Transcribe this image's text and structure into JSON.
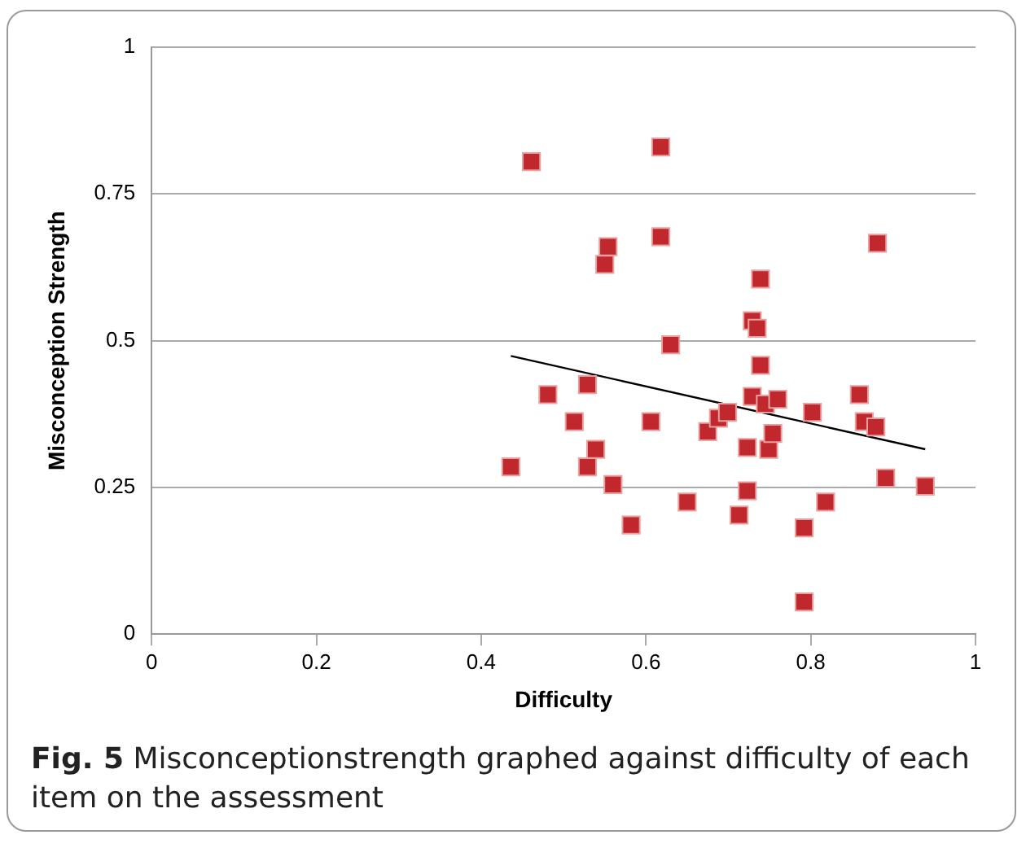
{
  "chart_data": {
    "type": "scatter",
    "xlabel": "Difficulty",
    "ylabel": "Misconception Strength",
    "xlim": [
      0,
      1
    ],
    "xticks": [
      0,
      0.2,
      0.4,
      0.6,
      0.8,
      1
    ],
    "ylim": [
      0,
      1
    ],
    "yticks": [
      0,
      0.25,
      0.5,
      0.75,
      1
    ],
    "grid": "y",
    "legend": false,
    "marker": "square",
    "annotations": [
      "Fig. 5  Misconceptionstrength graphed against difficulty of each item on the assessment"
    ],
    "series": [
      {
        "type": "scatter",
        "color": "#c0282d",
        "x": [
          0.436,
          0.461,
          0.481,
          0.513,
          0.529,
          0.529,
          0.539,
          0.55,
          0.554,
          0.56,
          0.582,
          0.618,
          0.618,
          0.63,
          0.606,
          0.65,
          0.675,
          0.688,
          0.699,
          0.713,
          0.723,
          0.723,
          0.729,
          0.735,
          0.729,
          0.739,
          0.739,
          0.745,
          0.749,
          0.754,
          0.76,
          0.792,
          0.792,
          0.802,
          0.818,
          0.859,
          0.865,
          0.879,
          0.881,
          0.891,
          0.939
        ],
        "values": [
          0.285,
          0.805,
          0.408,
          0.362,
          0.425,
          0.285,
          0.315,
          0.63,
          0.66,
          0.255,
          0.186,
          0.83,
          0.677,
          0.493,
          0.362,
          0.225,
          0.345,
          0.368,
          0.378,
          0.203,
          0.244,
          0.318,
          0.534,
          0.521,
          0.405,
          0.605,
          0.458,
          0.392,
          0.315,
          0.342,
          0.4,
          0.055,
          0.181,
          0.378,
          0.225,
          0.408,
          0.362,
          0.353,
          0.666,
          0.266,
          0.252
        ]
      },
      {
        "type": "line",
        "color": "#000000",
        "marker": "none",
        "x": [
          0.436,
          0.939
        ],
        "values": [
          0.474,
          0.315
        ]
      }
    ]
  }
}
